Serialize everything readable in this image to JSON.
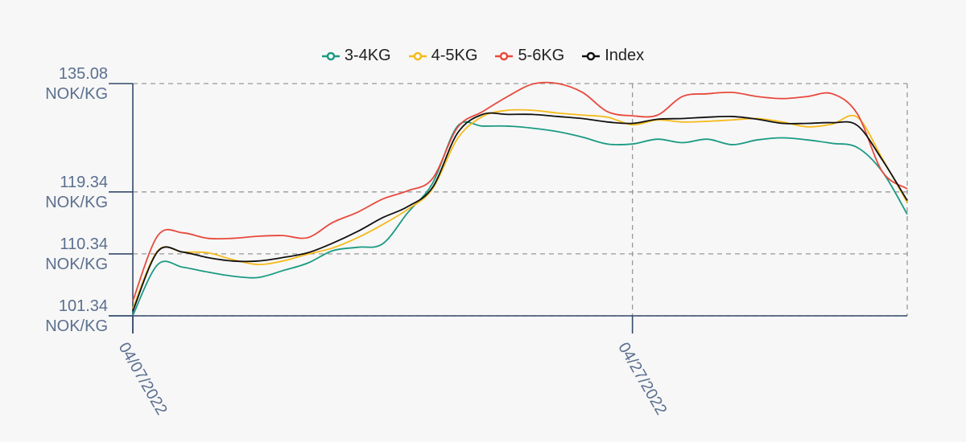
{
  "chart_data": {
    "type": "line",
    "x": [
      "04/07/2022",
      "",
      "",
      "",
      "",
      "",
      "",
      "",
      "",
      "",
      "",
      "",
      "",
      "",
      "",
      "",
      "",
      "",
      "",
      "",
      "04/27/2022",
      "",
      "",
      "",
      "",
      "",
      "",
      "",
      "",
      "",
      "",
      ""
    ],
    "x_tick_labels": [
      "04/07/2022",
      "04/27/2022"
    ],
    "y_tick_labels": [
      {
        "value": 135.08,
        "line1": "135.08",
        "line2": "NOK/KG"
      },
      {
        "value": 119.34,
        "line1": "119.34",
        "line2": "NOK/KG"
      },
      {
        "value": 110.34,
        "line1": "110.34",
        "line2": "NOK/KG"
      },
      {
        "value": 101.34,
        "line1": "101.34",
        "line2": "NOK/KG"
      }
    ],
    "ylim": [
      101.34,
      135.08
    ],
    "grid": true,
    "legend_position": "top-center",
    "series": [
      {
        "name": "3-4KG",
        "color": "#1a9a83",
        "values": [
          101.4,
          108.8,
          108.4,
          107.7,
          107.1,
          106.9,
          107.9,
          109.0,
          110.8,
          111.3,
          111.8,
          116.3,
          120.6,
          128.9,
          128.9,
          128.9,
          128.6,
          128.1,
          127.3,
          126.3,
          126.3,
          127.0,
          126.5,
          127.0,
          126.2,
          126.9,
          127.2,
          126.9,
          126.4,
          125.8,
          122.3,
          116.1
        ]
      },
      {
        "name": "4-5KG",
        "color": "#f5bb1b",
        "values": [
          102.4,
          110.8,
          110.6,
          110.5,
          109.5,
          108.8,
          109.3,
          110.3,
          111.2,
          112.7,
          114.6,
          116.8,
          119.8,
          127.1,
          130.3,
          131.2,
          131.2,
          130.8,
          130.5,
          130.2,
          129.1,
          129.8,
          129.5,
          129.6,
          129.8,
          130.0,
          129.5,
          128.8,
          129.2,
          130.2,
          124.2,
          117.8
        ]
      },
      {
        "name": "5-6KG",
        "color": "#e8493d",
        "values": [
          103.5,
          113.0,
          113.4,
          112.6,
          112.6,
          112.9,
          113.0,
          112.7,
          114.9,
          116.4,
          118.3,
          119.5,
          121.3,
          128.7,
          131.0,
          133.2,
          135.0,
          135.1,
          133.8,
          131.0,
          130.4,
          130.5,
          133.2,
          133.6,
          133.8,
          133.2,
          132.9,
          133.2,
          133.6,
          130.7,
          122.3,
          119.8
        ]
      },
      {
        "name": "Index",
        "color": "#111111",
        "values": [
          102.0,
          110.7,
          110.6,
          109.8,
          109.3,
          109.3,
          109.8,
          110.5,
          111.9,
          113.6,
          115.6,
          117.2,
          120.0,
          127.9,
          130.6,
          130.6,
          130.6,
          130.3,
          130.0,
          129.5,
          129.3,
          129.9,
          130.0,
          130.2,
          130.3,
          129.9,
          129.3,
          129.3,
          129.4,
          129.0,
          124.0,
          118.1
        ]
      }
    ]
  }
}
